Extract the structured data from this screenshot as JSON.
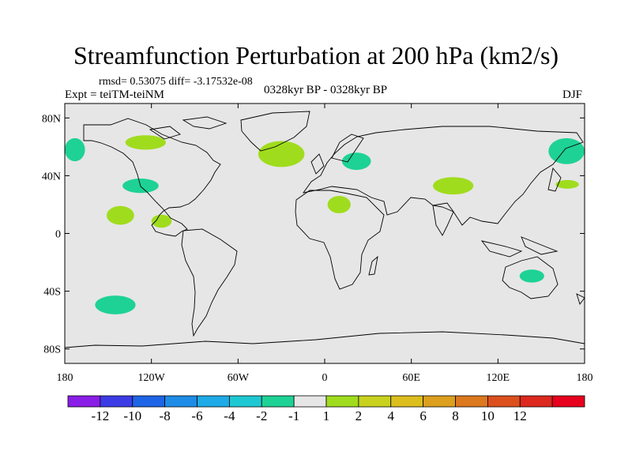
{
  "chart_data": {
    "type": "map",
    "title": "Streamfunction Perturbation at 200 hPa (km2/s)",
    "stats": "rmsd= 0.53075 diff= -3.17532e-08",
    "left_label": "Expt = teiTM-teiNM",
    "center_label": "0328kyr BP - 0328kyr BP",
    "right_label": "DJF",
    "x_ticks": [
      {
        "lon": -180,
        "label": "180"
      },
      {
        "lon": -120,
        "label": "120W"
      },
      {
        "lon": -60,
        "label": "60W"
      },
      {
        "lon": 0,
        "label": "0"
      },
      {
        "lon": 60,
        "label": "60E"
      },
      {
        "lon": 120,
        "label": "120E"
      },
      {
        "lon": 180,
        "label": "180"
      }
    ],
    "y_ticks": [
      {
        "lat": 80,
        "label": "80N"
      },
      {
        "lat": 40,
        "label": "40N"
      },
      {
        "lat": 0,
        "label": "0"
      },
      {
        "lat": -40,
        "label": "40S"
      },
      {
        "lat": -80,
        "label": "80S"
      }
    ],
    "xlim": [
      -180,
      180
    ],
    "ylim": [
      -90,
      90
    ],
    "colorbar": {
      "colors": [
        "#8a1ee6",
        "#3c3ce6",
        "#1e64e6",
        "#1e8ce6",
        "#1eaae6",
        "#1ec8d2",
        "#1ed296",
        "#e6e6e6",
        "#a0dc1e",
        "#c8d21e",
        "#dcbe1e",
        "#dca01e",
        "#dc781e",
        "#dc501e",
        "#dc281e",
        "#e6001e"
      ],
      "labels": [
        "-12",
        "-10",
        "-8",
        "-6",
        "-4",
        "-2",
        "-1",
        "1",
        "2",
        "4",
        "6",
        "8",
        "10",
        "12"
      ]
    },
    "anomalies": [
      {
        "sign": "negative",
        "level": -2,
        "lon_min": -180,
        "lon_max": -166,
        "lat_min": 50,
        "lat_max": 66
      },
      {
        "sign": "negative",
        "level": -2,
        "lon_min": 155,
        "lon_max": 180,
        "lat_min": 48,
        "lat_max": 66
      },
      {
        "sign": "positive",
        "level": 2,
        "lon_min": -138,
        "lon_max": -110,
        "lat_min": 58,
        "lat_max": 68
      },
      {
        "sign": "positive",
        "level": 2,
        "lon_min": -46,
        "lon_max": -14,
        "lat_min": 46,
        "lat_max": 64
      },
      {
        "sign": "negative",
        "level": -2,
        "lon_min": 12,
        "lon_max": 32,
        "lat_min": 44,
        "lat_max": 56
      },
      {
        "sign": "negative",
        "level": -2,
        "lon_min": -140,
        "lon_max": -115,
        "lat_min": 28,
        "lat_max": 38
      },
      {
        "sign": "positive",
        "level": 2,
        "lon_min": 75,
        "lon_max": 103,
        "lat_min": 27,
        "lat_max": 39
      },
      {
        "sign": "positive",
        "level": 2,
        "lon_min": 2,
        "lon_max": 18,
        "lat_min": 14,
        "lat_max": 26
      },
      {
        "sign": "positive",
        "level": 2,
        "lon_min": 160,
        "lon_max": 176,
        "lat_min": 31,
        "lat_max": 37
      },
      {
        "sign": "positive",
        "level": 2,
        "lon_min": -151,
        "lon_max": -132,
        "lat_min": 6,
        "lat_max": 19
      },
      {
        "sign": "positive",
        "level": 2,
        "lon_min": -120,
        "lon_max": -106,
        "lat_min": 4,
        "lat_max": 13
      },
      {
        "sign": "negative",
        "level": -2,
        "lon_min": 135,
        "lon_max": 152,
        "lat_min": -34,
        "lat_max": -25
      },
      {
        "sign": "negative",
        "level": -2,
        "lon_min": -159,
        "lon_max": -131,
        "lat_min": -56,
        "lat_max": -43
      }
    ]
  }
}
